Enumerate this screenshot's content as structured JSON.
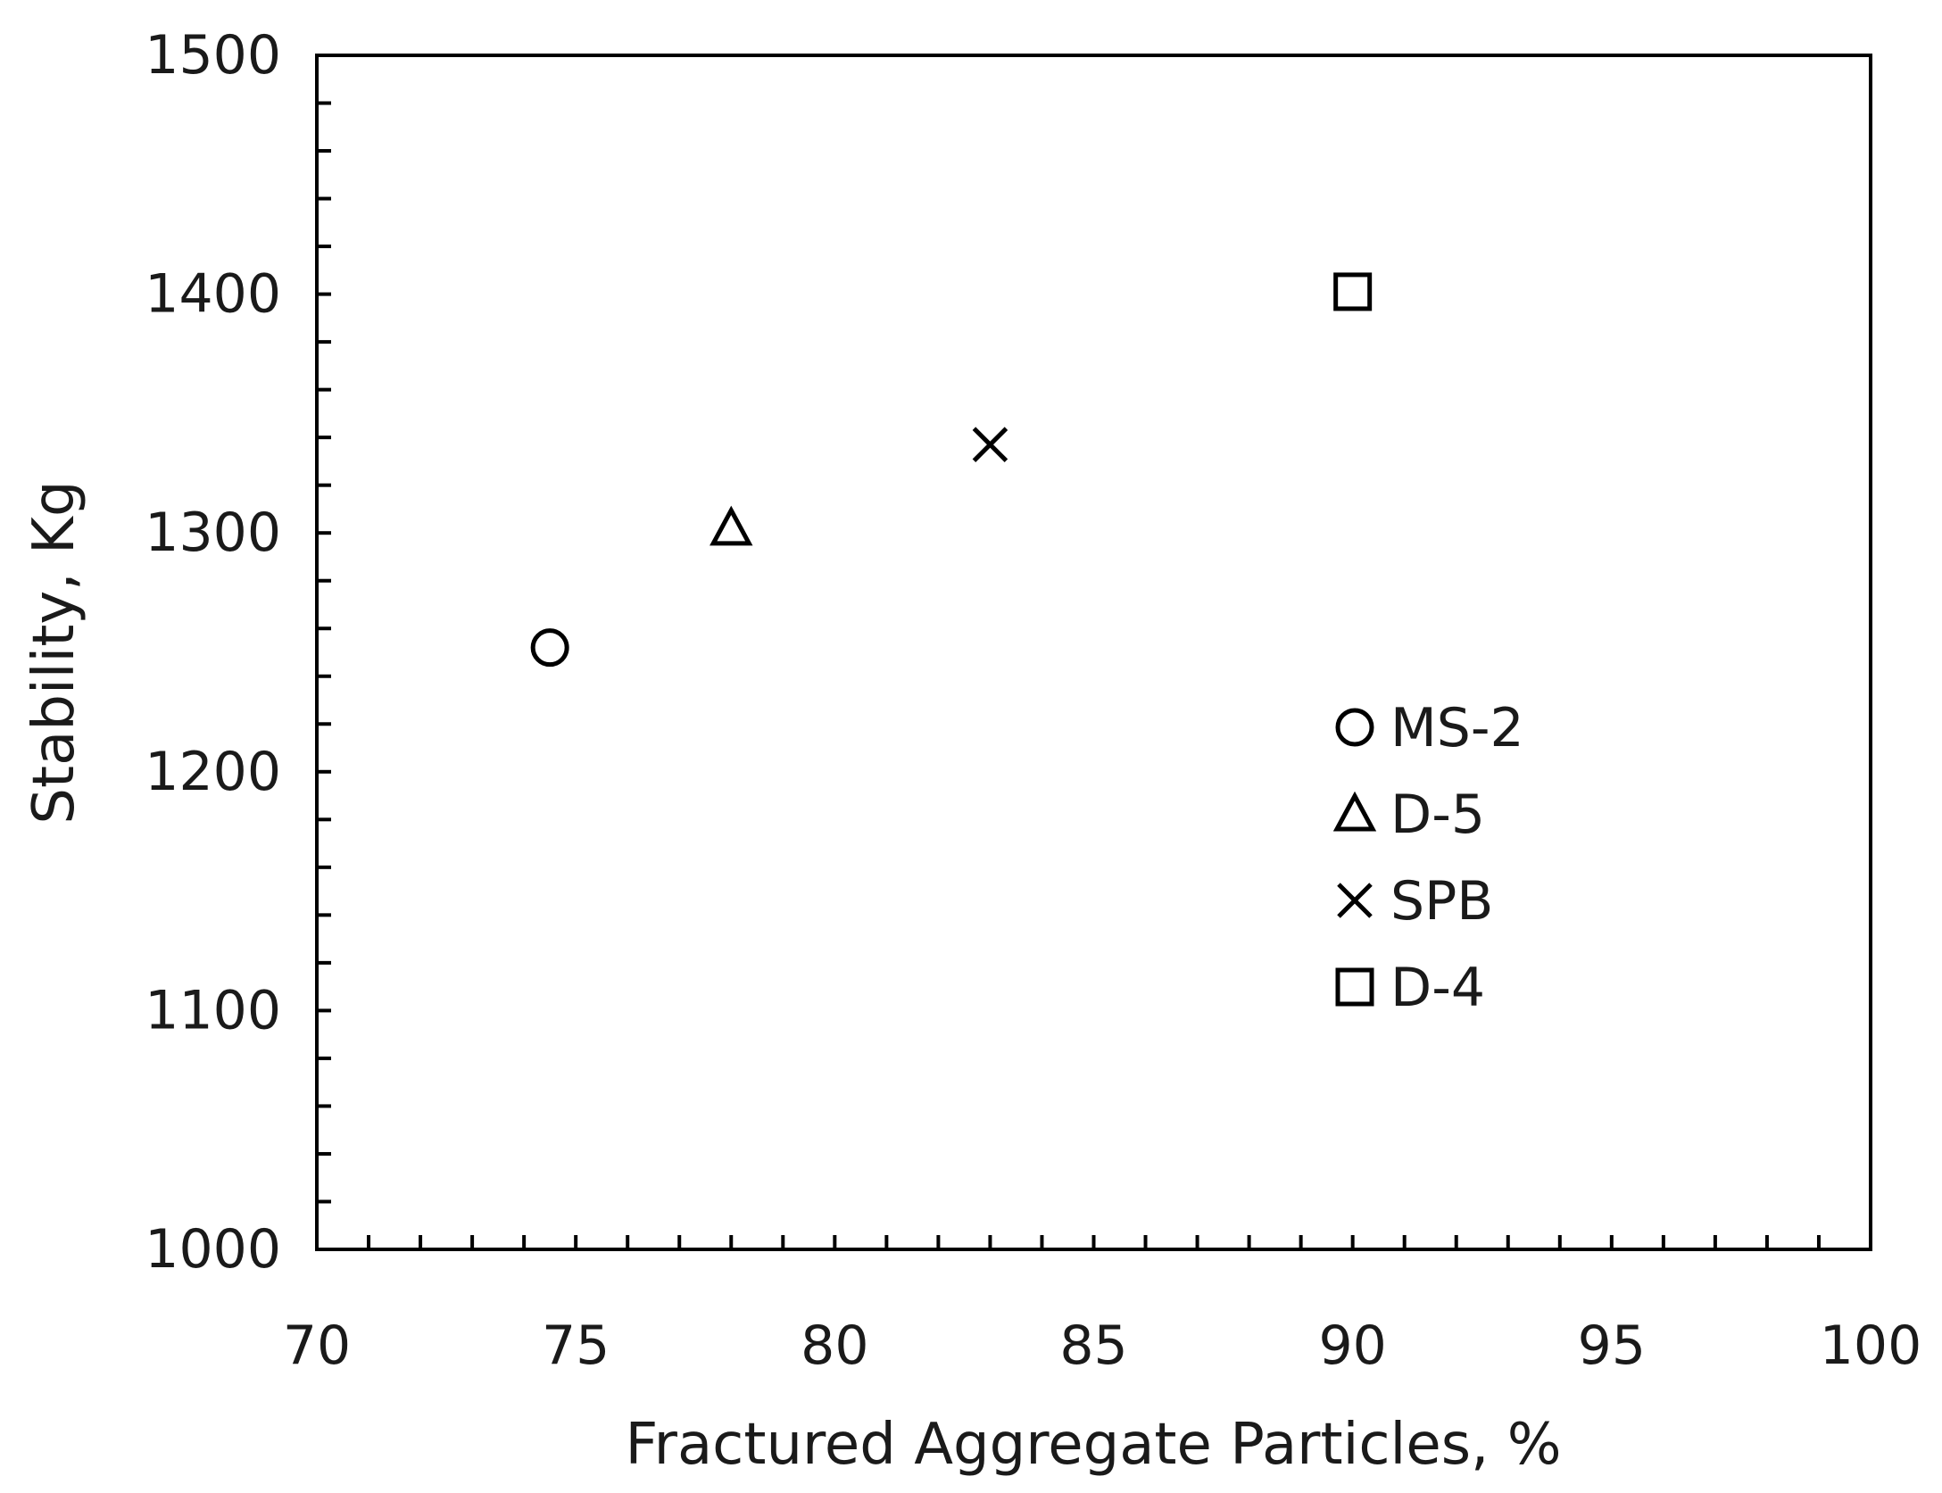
{
  "chart_data": {
    "type": "scatter",
    "title": "",
    "xlabel": "Fractured Aggregate Particles, %",
    "ylabel": "Stability, Kg",
    "xlim": [
      70,
      100
    ],
    "ylim": [
      1000,
      1500
    ],
    "xticks": [
      "70",
      "75",
      "80",
      "85",
      "90",
      "95",
      "100"
    ],
    "yticks": [
      "1000",
      "1100",
      "1200",
      "1300",
      "1400",
      "1500"
    ],
    "x_minor_step": 1,
    "y_minor_step": 20,
    "grid": false,
    "legend_position": "right-middle",
    "series": [
      {
        "name": "MS-2",
        "marker": "circle",
        "x": [
          74.5
        ],
        "y": [
          1252
        ]
      },
      {
        "name": "D-5",
        "marker": "triangle",
        "x": [
          78
        ],
        "y": [
          1302
        ]
      },
      {
        "name": "SPB",
        "marker": "x",
        "x": [
          83
        ],
        "y": [
          1337
        ]
      },
      {
        "name": "D-4",
        "marker": "square",
        "x": [
          90
        ],
        "y": [
          1401
        ]
      }
    ]
  }
}
